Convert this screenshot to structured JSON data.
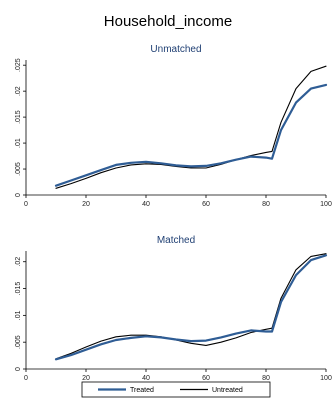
{
  "chart_data": {
    "title": "Household_income",
    "panels": [
      {
        "type": "line",
        "subtitle": "Unmatched",
        "xlim": [
          0,
          100
        ],
        "ylim": [
          0,
          0.026
        ],
        "xticks": [
          0,
          20,
          40,
          60,
          80,
          100
        ],
        "xtick_labels": [
          "0",
          "20",
          "40",
          "60",
          "80",
          "100"
        ],
        "yticks": [
          0,
          0.005,
          0.01,
          0.015,
          0.02,
          0.025
        ],
        "ytick_labels": [
          "0",
          ".005",
          ".01",
          ".015",
          ".02",
          ".025"
        ],
        "grid": false,
        "series": [
          {
            "name": "Treated",
            "color": "#2f5d95",
            "x": [
              10,
              15,
              20,
              25,
              30,
              35,
              40,
              45,
              50,
              55,
              60,
              65,
              70,
              75,
              80,
              82,
              85,
              90,
              95,
              100
            ],
            "y": [
              0.0018,
              0.0028,
              0.0038,
              0.0048,
              0.0058,
              0.0062,
              0.0064,
              0.0061,
              0.0057,
              0.0055,
              0.0056,
              0.0061,
              0.0068,
              0.0074,
              0.0072,
              0.007,
              0.0125,
              0.0178,
              0.0205,
              0.0212
            ]
          },
          {
            "name": "Untreated",
            "color": "#000000",
            "x": [
              10,
              15,
              20,
              25,
              30,
              35,
              40,
              45,
              50,
              55,
              60,
              65,
              70,
              75,
              80,
              82,
              85,
              90,
              95,
              100
            ],
            "y": [
              0.0013,
              0.0022,
              0.0032,
              0.0043,
              0.0052,
              0.0058,
              0.006,
              0.0059,
              0.0055,
              0.0052,
              0.0052,
              0.0059,
              0.0068,
              0.0076,
              0.0082,
              0.0084,
              0.014,
              0.0205,
              0.0238,
              0.0248
            ]
          }
        ]
      },
      {
        "type": "line",
        "subtitle": "Matched",
        "xlim": [
          0,
          100
        ],
        "ylim": [
          0,
          0.022
        ],
        "xticks": [
          0,
          20,
          40,
          60,
          80,
          100
        ],
        "xtick_labels": [
          "0",
          "20",
          "40",
          "60",
          "80",
          "100"
        ],
        "yticks": [
          0,
          0.005,
          0.01,
          0.015,
          0.02
        ],
        "ytick_labels": [
          "0",
          ".005",
          ".01",
          ".015",
          ".02"
        ],
        "grid": false,
        "series": [
          {
            "name": "Treated",
            "color": "#2f5d95",
            "x": [
              10,
              15,
              20,
              25,
              30,
              35,
              40,
              45,
              50,
              55,
              60,
              65,
              70,
              75,
              80,
              82,
              85,
              90,
              95,
              100
            ],
            "y": [
              0.0018,
              0.0026,
              0.0036,
              0.0046,
              0.0054,
              0.0058,
              0.0061,
              0.0059,
              0.0055,
              0.0052,
              0.0053,
              0.0059,
              0.0066,
              0.0072,
              0.007,
              0.007,
              0.0125,
              0.0175,
              0.0203,
              0.0212
            ]
          },
          {
            "name": "Untreated",
            "color": "#000000",
            "x": [
              10,
              15,
              20,
              25,
              30,
              35,
              40,
              45,
              50,
              55,
              60,
              65,
              70,
              75,
              80,
              82,
              85,
              90,
              95,
              100
            ],
            "y": [
              0.0019,
              0.0029,
              0.0041,
              0.0052,
              0.006,
              0.0063,
              0.0063,
              0.006,
              0.0054,
              0.0048,
              0.0044,
              0.005,
              0.0058,
              0.0068,
              0.0074,
              0.0076,
              0.0132,
              0.0185,
              0.021,
              0.0215
            ]
          }
        ]
      }
    ],
    "legend": {
      "position": "bottom",
      "entries": [
        {
          "label": "Treated",
          "color": "#2f5d95"
        },
        {
          "label": "Untreated",
          "color": "#000000"
        }
      ]
    }
  }
}
